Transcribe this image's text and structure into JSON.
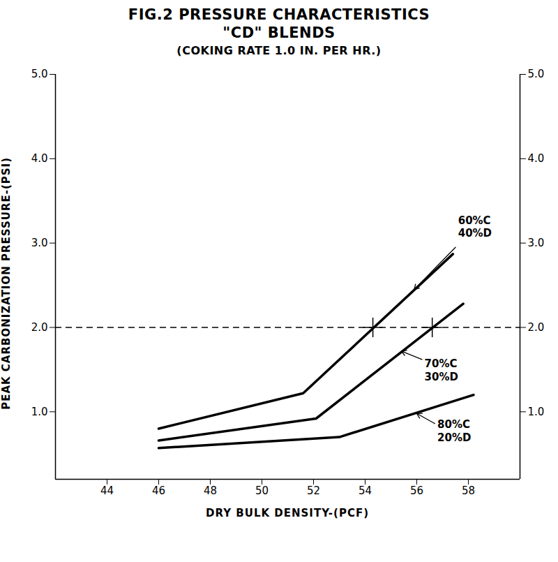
{
  "chart_data": {
    "type": "line",
    "title": "FIG.2 PRESSURE CHARACTERISTICS",
    "subtitle": "\"CD\" BLENDS",
    "caption": "(COKING RATE 1.0 IN. PER HR.)",
    "x_label": "DRY BULK DENSITY-(PCF)",
    "y_label": "PEAK CARBONIZATION PRESSURE-(PSI)",
    "xlim": [
      42,
      60
    ],
    "xticks": [
      44,
      46,
      48,
      50,
      52,
      54,
      56,
      58
    ],
    "ylim": [
      0.2,
      5
    ],
    "yticks": [
      {
        "value": 1,
        "label": "1.0"
      },
      {
        "value": 2,
        "label": "2.0"
      },
      {
        "value": 3,
        "label": "3.0"
      },
      {
        "value": 4,
        "label": "4.0"
      },
      {
        "value": 5,
        "label": "5.0"
      }
    ],
    "grid": false,
    "legend": false,
    "series": [
      {
        "name": "60%C\n40%D",
        "color": "#000000",
        "x": [
          46,
          51.6,
          57.4
        ],
        "values": [
          0.8,
          1.22,
          2.87
        ],
        "label_at": [
          57.6,
          3.2
        ],
        "arrow_from": [
          57.5,
          2.95
        ],
        "arrow_to": [
          55.9,
          2.45
        ]
      },
      {
        "name": "70%C\n30%D",
        "color": "#000000",
        "x": [
          46,
          52.1,
          57.8
        ],
        "values": [
          0.66,
          0.92,
          2.28
        ],
        "label_at": [
          56.3,
          1.5
        ],
        "arrow_from": [
          56.2,
          1.62
        ],
        "arrow_to": [
          55.4,
          1.72
        ]
      },
      {
        "name": "80%C\n20%D",
        "color": "#000000",
        "x": [
          46,
          53,
          58.2
        ],
        "values": [
          0.57,
          0.7,
          1.2
        ],
        "label_at": [
          56.8,
          0.78
        ],
        "arrow_from": [
          56.7,
          0.86
        ],
        "arrow_to": [
          56.0,
          0.98
        ]
      }
    ],
    "reference_lines": [
      {
        "value": 2,
        "line_style": "dashed"
      }
    ],
    "markers": {
      "marker": "plus",
      "x": [
        54.3,
        56.6
      ],
      "values": [
        2,
        2
      ]
    }
  }
}
